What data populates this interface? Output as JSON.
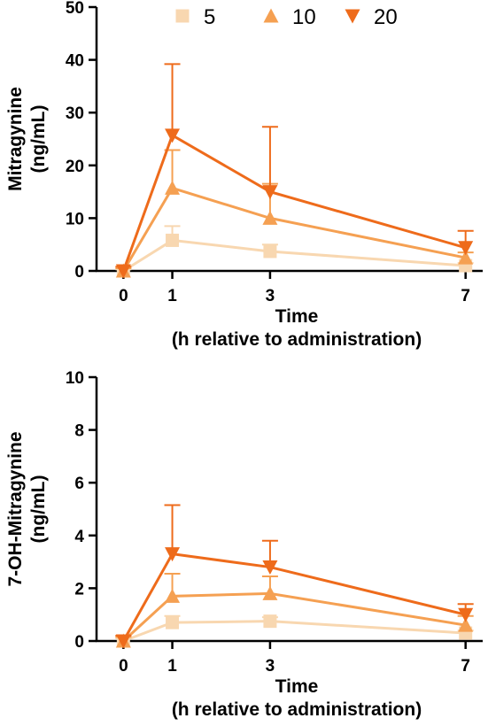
{
  "legend": [
    {
      "label": "5",
      "color": "#f8d7b0",
      "marker": "square"
    },
    {
      "label": "10",
      "color": "#f5a052",
      "marker": "triangle-up"
    },
    {
      "label": "20",
      "color": "#ee6b1b",
      "marker": "triangle-down"
    }
  ],
  "chart_data": [
    {
      "type": "line",
      "ylabel_lines": [
        "Mitragynine",
        "(ng/mL)"
      ],
      "xlabel_lines": [
        "Time",
        "(h relative to administration)"
      ],
      "ylim": [
        0,
        50
      ],
      "yticks": [
        0,
        10,
        20,
        30,
        40,
        50
      ],
      "xlim": [
        -0.55,
        7.35
      ],
      "xticks": [
        0,
        1,
        3,
        7
      ],
      "x": [
        0,
        1,
        3,
        7
      ],
      "series": [
        {
          "name": "5",
          "values": [
            0,
            5.8,
            3.7,
            1.0
          ],
          "err_upper": [
            0.3,
            2.7,
            1.3,
            0.5
          ]
        },
        {
          "name": "10",
          "values": [
            0,
            15.7,
            10.0,
            2.5
          ],
          "err_upper": [
            0.5,
            7.2,
            6.5,
            1.0
          ]
        },
        {
          "name": "20",
          "values": [
            0,
            25.7,
            15.0,
            4.4
          ],
          "err_upper": [
            0.8,
            13.5,
            12.3,
            3.2
          ]
        }
      ]
    },
    {
      "type": "line",
      "ylabel_lines": [
        "7-OH-Mitragynine",
        "(ng/mL)"
      ],
      "xlabel_lines": [
        "Time",
        "(h relative to administration)"
      ],
      "ylim": [
        0,
        10
      ],
      "yticks": [
        0,
        2,
        4,
        6,
        8,
        10
      ],
      "xlim": [
        -0.55,
        7.35
      ],
      "xticks": [
        0,
        1,
        3,
        7
      ],
      "x": [
        0,
        1,
        3,
        7
      ],
      "series": [
        {
          "name": "5",
          "values": [
            0,
            0.7,
            0.75,
            0.3
          ],
          "err_upper": [
            0.1,
            0.25,
            0.15,
            0.1
          ]
        },
        {
          "name": "10",
          "values": [
            0,
            1.7,
            1.8,
            0.6
          ],
          "err_upper": [
            0.15,
            0.85,
            0.65,
            0.35
          ]
        },
        {
          "name": "20",
          "values": [
            0,
            3.3,
            2.8,
            1.0
          ],
          "err_upper": [
            0.2,
            1.85,
            1.0,
            0.4
          ]
        }
      ]
    }
  ]
}
